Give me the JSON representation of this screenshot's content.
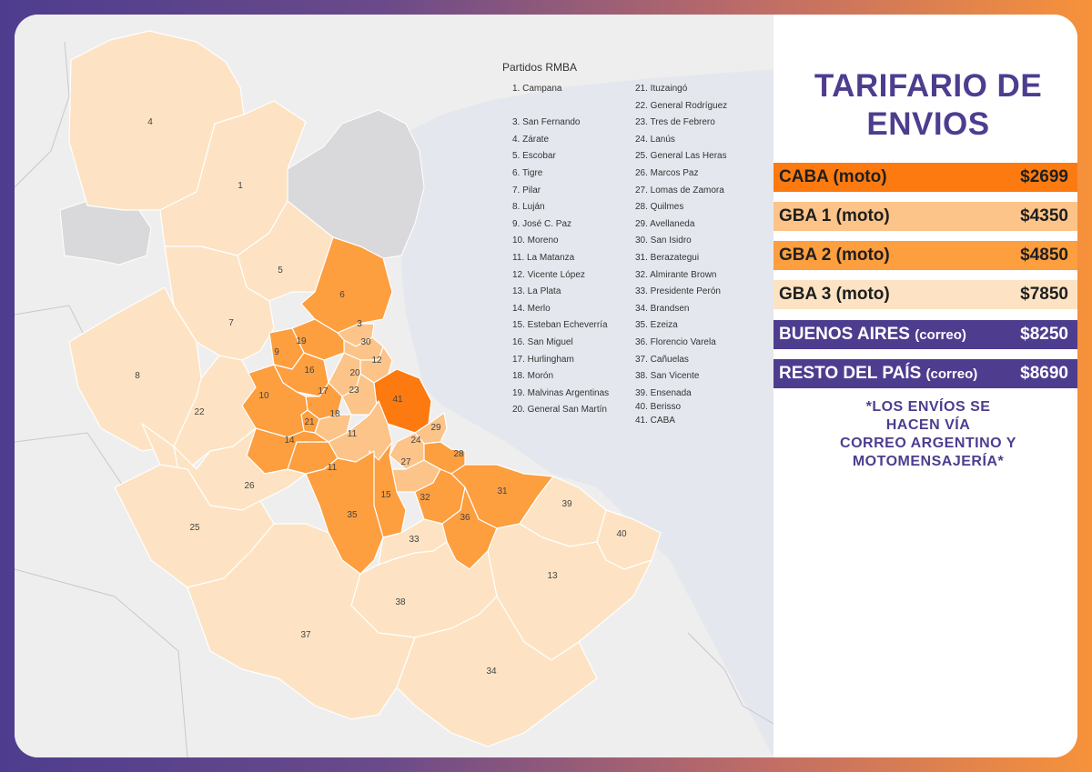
{
  "colors": {
    "tier_caba": "#fd7a10",
    "tier_gba1": "#fcc489",
    "tier_gba2": "#fd9e3f",
    "tier_gba3": "#fde3c3",
    "purple": "#4e3d8f",
    "water": "#e4e8ee",
    "land": "#eeeeef",
    "outer": "#e0e0e2"
  },
  "legend": {
    "title": "Partidos RMBA",
    "col1": [
      "1. Campana",
      "",
      "3. San Fernando",
      "4. Zárate",
      "5. Escobar",
      "6. Tigre",
      "7. Pilar",
      "8. Luján",
      "9. José C. Paz",
      "10. Moreno",
      "11. La Matanza",
      "12. Vicente López",
      "13. La Plata",
      "14. Merlo",
      "15. Esteban Echeverría",
      "16. San Miguel",
      "17. Hurlingham",
      "18. Morón",
      "19. Malvinas Argentinas",
      "20. General San Martín"
    ],
    "col2": [
      "21. Ituzaingó",
      "22. General Rodríguez",
      "23. Tres de Febrero",
      "24. Lanús",
      "25. General Las Heras",
      "26. Marcos Paz",
      "27. Lomas de Zamora",
      "28. Quilmes",
      "29. Avellaneda",
      "30. San Isidro",
      "31. Berazategui",
      "32. Almirante Brown",
      "33. Presidente Perón",
      "34. Brandsen",
      "35. Ezeiza",
      "36. Florencio Varela",
      "37. Cañuelas",
      "38. San Vicente",
      "39. Ensenada",
      "40. Berisso",
      "41. CABA"
    ]
  },
  "panel": {
    "title_line1": "TARIFARIO DE",
    "title_line2": "ENVIOS",
    "rates": [
      {
        "name": "CABA",
        "mode": "(moto)",
        "price": "$2699",
        "style": "caba"
      },
      {
        "name": "GBA 1",
        "mode": "(moto)",
        "price": "$4350",
        "style": "gba1"
      },
      {
        "name": "GBA 2",
        "mode": "(moto)",
        "price": "$4850",
        "style": "gba2"
      },
      {
        "name": "GBA 3",
        "mode": "(moto)",
        "price": "$7850",
        "style": "gba3"
      },
      {
        "name": "BUENOS AIRES",
        "mode": "(correo)",
        "price": "$8250",
        "style": "purple"
      },
      {
        "name": "RESTO DEL PAÍS",
        "mode": "(correo)",
        "price": "$8690",
        "style": "purple"
      }
    ],
    "note": [
      "*LOS ENVÍOS SE",
      "HACEN VÍA",
      "CORREO ARGENTINO Y",
      "MOTOMENSAJERÍA*"
    ]
  },
  "map": {
    "regions": [
      {
        "num": "4",
        "tier": "gba3"
      },
      {
        "num": "1",
        "tier": "gba3"
      },
      {
        "num": "5",
        "tier": "gba3"
      },
      {
        "num": "6",
        "tier": "gba2"
      },
      {
        "num": "7",
        "tier": "gba3"
      },
      {
        "num": "8",
        "tier": "gba3"
      },
      {
        "num": "3",
        "tier": "gba1"
      },
      {
        "num": "30",
        "tier": "gba1"
      },
      {
        "num": "12",
        "tier": "gba1"
      },
      {
        "num": "19",
        "tier": "gba2"
      },
      {
        "num": "9",
        "tier": "gba2"
      },
      {
        "num": "16",
        "tier": "gba2"
      },
      {
        "num": "20",
        "tier": "gba1"
      },
      {
        "num": "23",
        "tier": "gba1"
      },
      {
        "num": "17",
        "tier": "gba2"
      },
      {
        "num": "21",
        "tier": "gba2"
      },
      {
        "num": "10",
        "tier": "gba2"
      },
      {
        "num": "18",
        "tier": "gba1"
      },
      {
        "num": "41",
        "tier": "caba"
      },
      {
        "num": "29",
        "tier": "gba1"
      },
      {
        "num": "24",
        "tier": "gba1"
      },
      {
        "num": "11",
        "tier": "gba1"
      },
      {
        "num": "11",
        "tier": "gba2"
      },
      {
        "num": "14",
        "tier": "gba2"
      },
      {
        "num": "22",
        "tier": "gba3"
      },
      {
        "num": "27",
        "tier": "gba1"
      },
      {
        "num": "28",
        "tier": "gba2"
      },
      {
        "num": "31",
        "tier": "gba2"
      },
      {
        "num": "32",
        "tier": "gba2"
      },
      {
        "num": "15",
        "tier": "gba2"
      },
      {
        "num": "35",
        "tier": "gba2"
      },
      {
        "num": "36",
        "tier": "gba2"
      },
      {
        "num": "33",
        "tier": "gba3"
      },
      {
        "num": "26",
        "tier": "gba3"
      },
      {
        "num": "25",
        "tier": "gba3"
      },
      {
        "num": "39",
        "tier": "gba3"
      },
      {
        "num": "40",
        "tier": "gba3"
      },
      {
        "num": "13",
        "tier": "gba3"
      },
      {
        "num": "38",
        "tier": "gba3"
      },
      {
        "num": "37",
        "tier": "gba3"
      },
      {
        "num": "34",
        "tier": "gba3"
      }
    ]
  }
}
